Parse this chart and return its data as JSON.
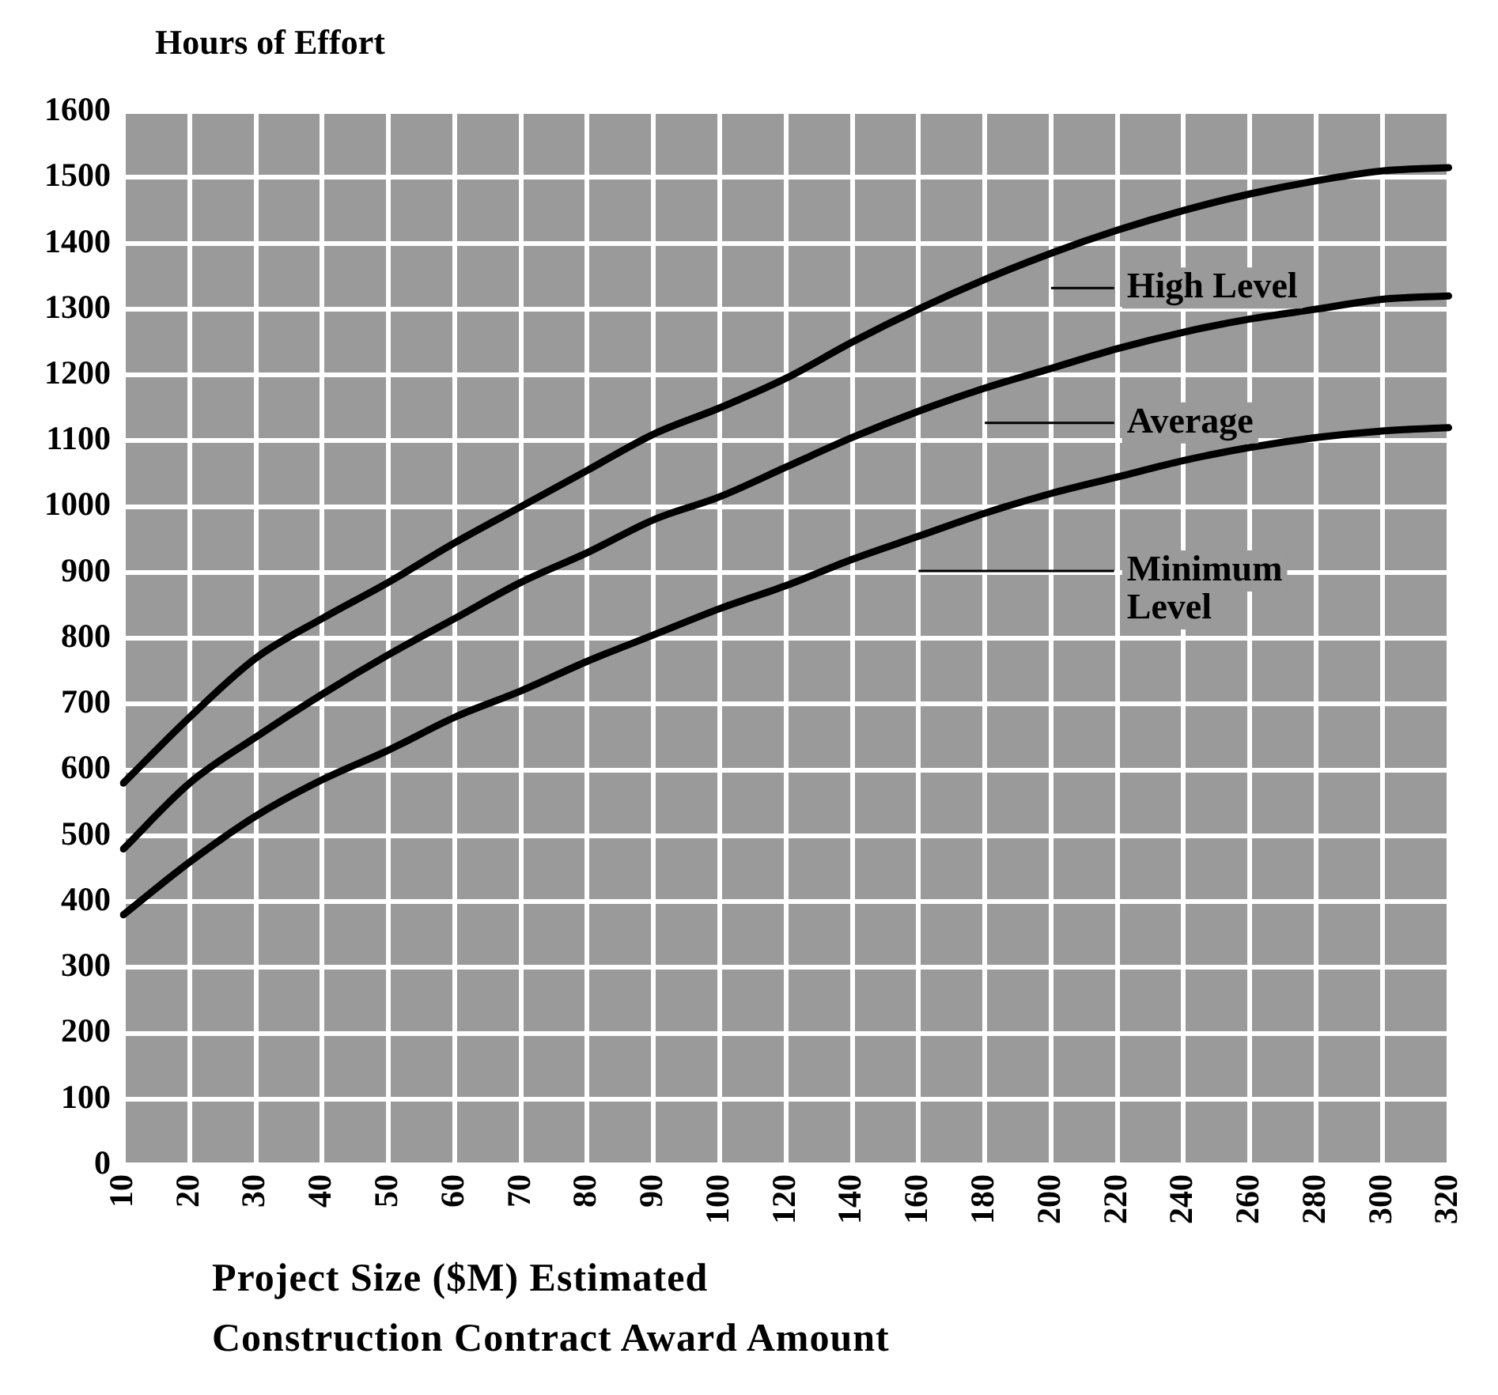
{
  "chart_data": {
    "type": "line",
    "ylabel": "Hours of Effort",
    "xlabel": "Project Size ($M) Estimated Construction Contract Award Amount",
    "categories": [
      "10",
      "20",
      "30",
      "40",
      "50",
      "60",
      "70",
      "80",
      "90",
      "100",
      "120",
      "140",
      "160",
      "180",
      "200",
      "220",
      "240",
      "260",
      "280",
      "300",
      "320"
    ],
    "ylim": [
      0,
      1600
    ],
    "yticks": [
      0,
      100,
      200,
      300,
      400,
      500,
      600,
      700,
      800,
      900,
      1000,
      1100,
      1200,
      1300,
      1400,
      1500,
      1600
    ],
    "grid": true,
    "legend": "right",
    "marker": "none",
    "line_style": "solid",
    "series": [
      {
        "name": "High Level",
        "color": "#000000",
        "values": [
          580,
          680,
          770,
          830,
          885,
          945,
          1000,
          1055,
          1110,
          1150,
          1195,
          1250,
          1300,
          1345,
          1385,
          1420,
          1450,
          1475,
          1495,
          1510,
          1515
        ]
      },
      {
        "name": "Average",
        "color": "#000000",
        "values": [
          480,
          580,
          650,
          715,
          775,
          830,
          885,
          930,
          980,
          1015,
          1060,
          1105,
          1145,
          1180,
          1210,
          1240,
          1265,
          1285,
          1300,
          1315,
          1320
        ]
      },
      {
        "name": "Minimum Level",
        "color": "#000000",
        "values": [
          380,
          460,
          530,
          585,
          630,
          680,
          720,
          765,
          805,
          845,
          880,
          920,
          955,
          990,
          1020,
          1045,
          1070,
          1090,
          1105,
          1115,
          1120
        ]
      }
    ]
  }
}
